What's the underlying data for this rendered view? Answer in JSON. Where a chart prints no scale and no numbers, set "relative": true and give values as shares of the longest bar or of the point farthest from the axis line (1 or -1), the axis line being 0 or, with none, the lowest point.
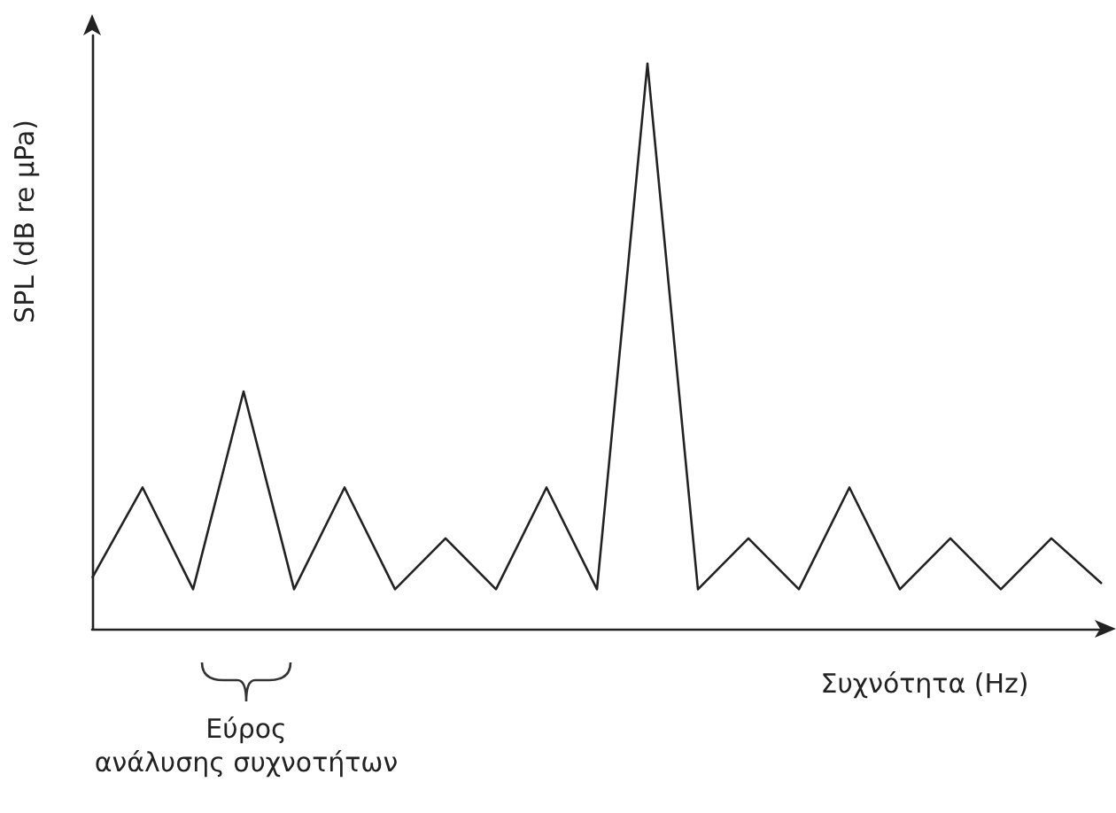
{
  "chart_data": {
    "type": "line",
    "relative": true,
    "xlabel": "Συχνότητα (Hz)",
    "ylabel": "SPL (dB re μPa)",
    "categories": [
      null,
      null,
      null,
      null,
      null,
      null,
      null,
      null,
      null,
      null,
      null,
      null,
      null,
      null,
      null,
      null,
      null,
      null,
      null,
      null,
      null
    ],
    "series": [
      {
        "color": "#222222",
        "values": [
          0.09,
          0.25,
          0.07,
          0.42,
          0.07,
          0.25,
          0.07,
          0.16,
          0.07,
          0.25,
          0.07,
          1,
          0.07,
          0.16,
          0.07,
          0.25,
          0.07,
          0.16,
          0.07,
          0.16,
          0.08
        ]
      }
    ],
    "annotations": [
      "Εύρος\nανάλυσης συχνοτήτων"
    ],
    "marker": "none",
    "line_style": "solid",
    "grid": false
  }
}
